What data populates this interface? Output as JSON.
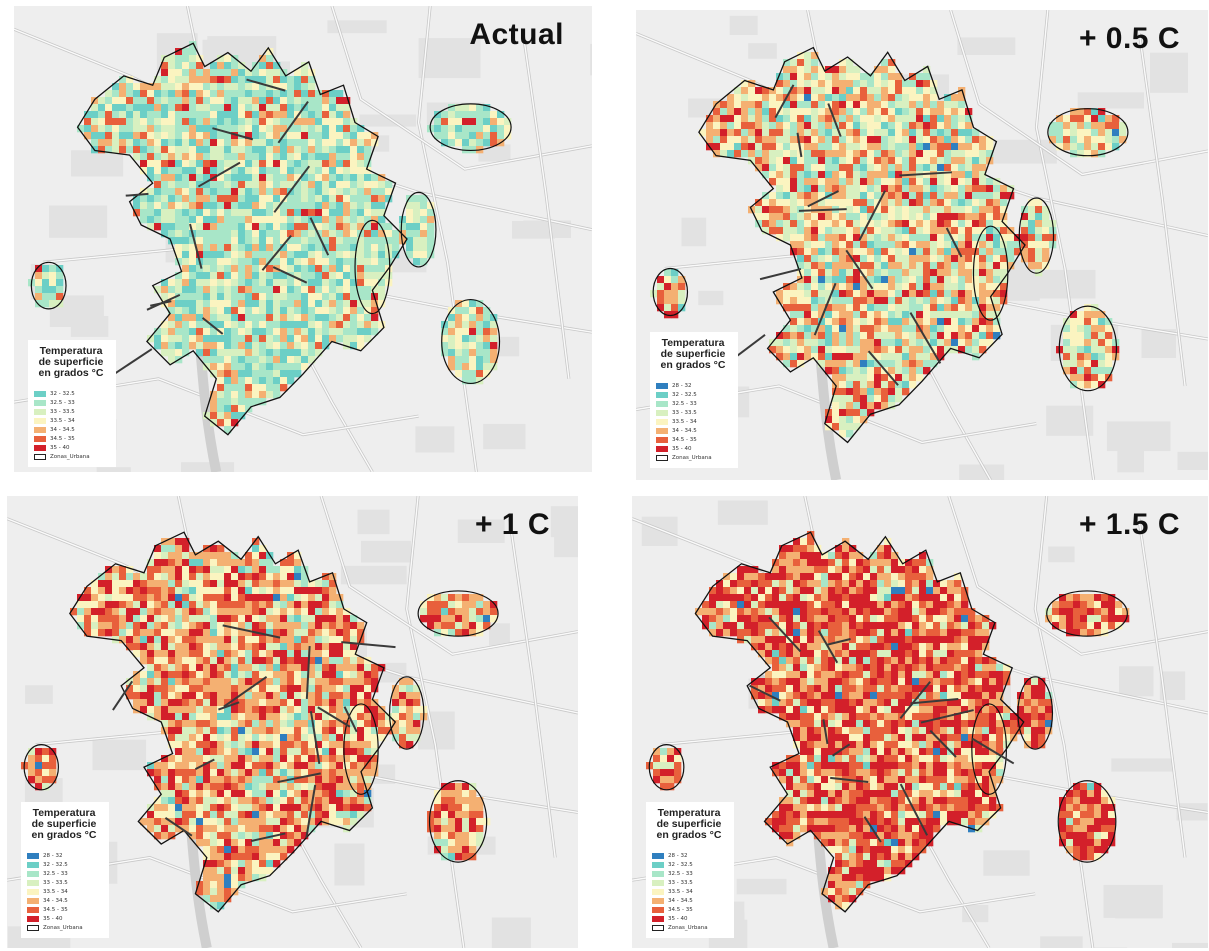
{
  "legend": {
    "title_line1": "Temperatura",
    "title_line2": "de superficie",
    "title_line3": "en grados °C",
    "urban_label": "Zonas_Urbana"
  },
  "classes": [
    {
      "label": "28 - 32",
      "color": "#2f7fbf"
    },
    {
      "label": "32 - 32.5",
      "color": "#6ccfc6"
    },
    {
      "label": "32.5 - 33",
      "color": "#a8e6c8"
    },
    {
      "label": "33 - 33.5",
      "color": "#d8f0c0"
    },
    {
      "label": "33.5 - 34",
      "color": "#fbf4c0"
    },
    {
      "label": "34 - 34.5",
      "color": "#f4b072"
    },
    {
      "label": "34.5 - 35",
      "color": "#e8603c"
    },
    {
      "label": "35 - 40",
      "color": "#d3202a"
    }
  ],
  "panels": [
    {
      "title": "Actual",
      "class_shares": [
        0.0,
        0.18,
        0.3,
        0.18,
        0.14,
        0.12,
        0.06,
        0.02
      ]
    },
    {
      "title": "+ 0.5 C",
      "class_shares": [
        0.01,
        0.06,
        0.16,
        0.16,
        0.18,
        0.22,
        0.13,
        0.08
      ]
    },
    {
      "title": "+ 1 C",
      "class_shares": [
        0.01,
        0.03,
        0.07,
        0.1,
        0.16,
        0.26,
        0.2,
        0.17
      ]
    },
    {
      "title": "+ 1.5 C",
      "class_shares": [
        0.01,
        0.01,
        0.03,
        0.05,
        0.1,
        0.2,
        0.25,
        0.35
      ]
    }
  ]
}
